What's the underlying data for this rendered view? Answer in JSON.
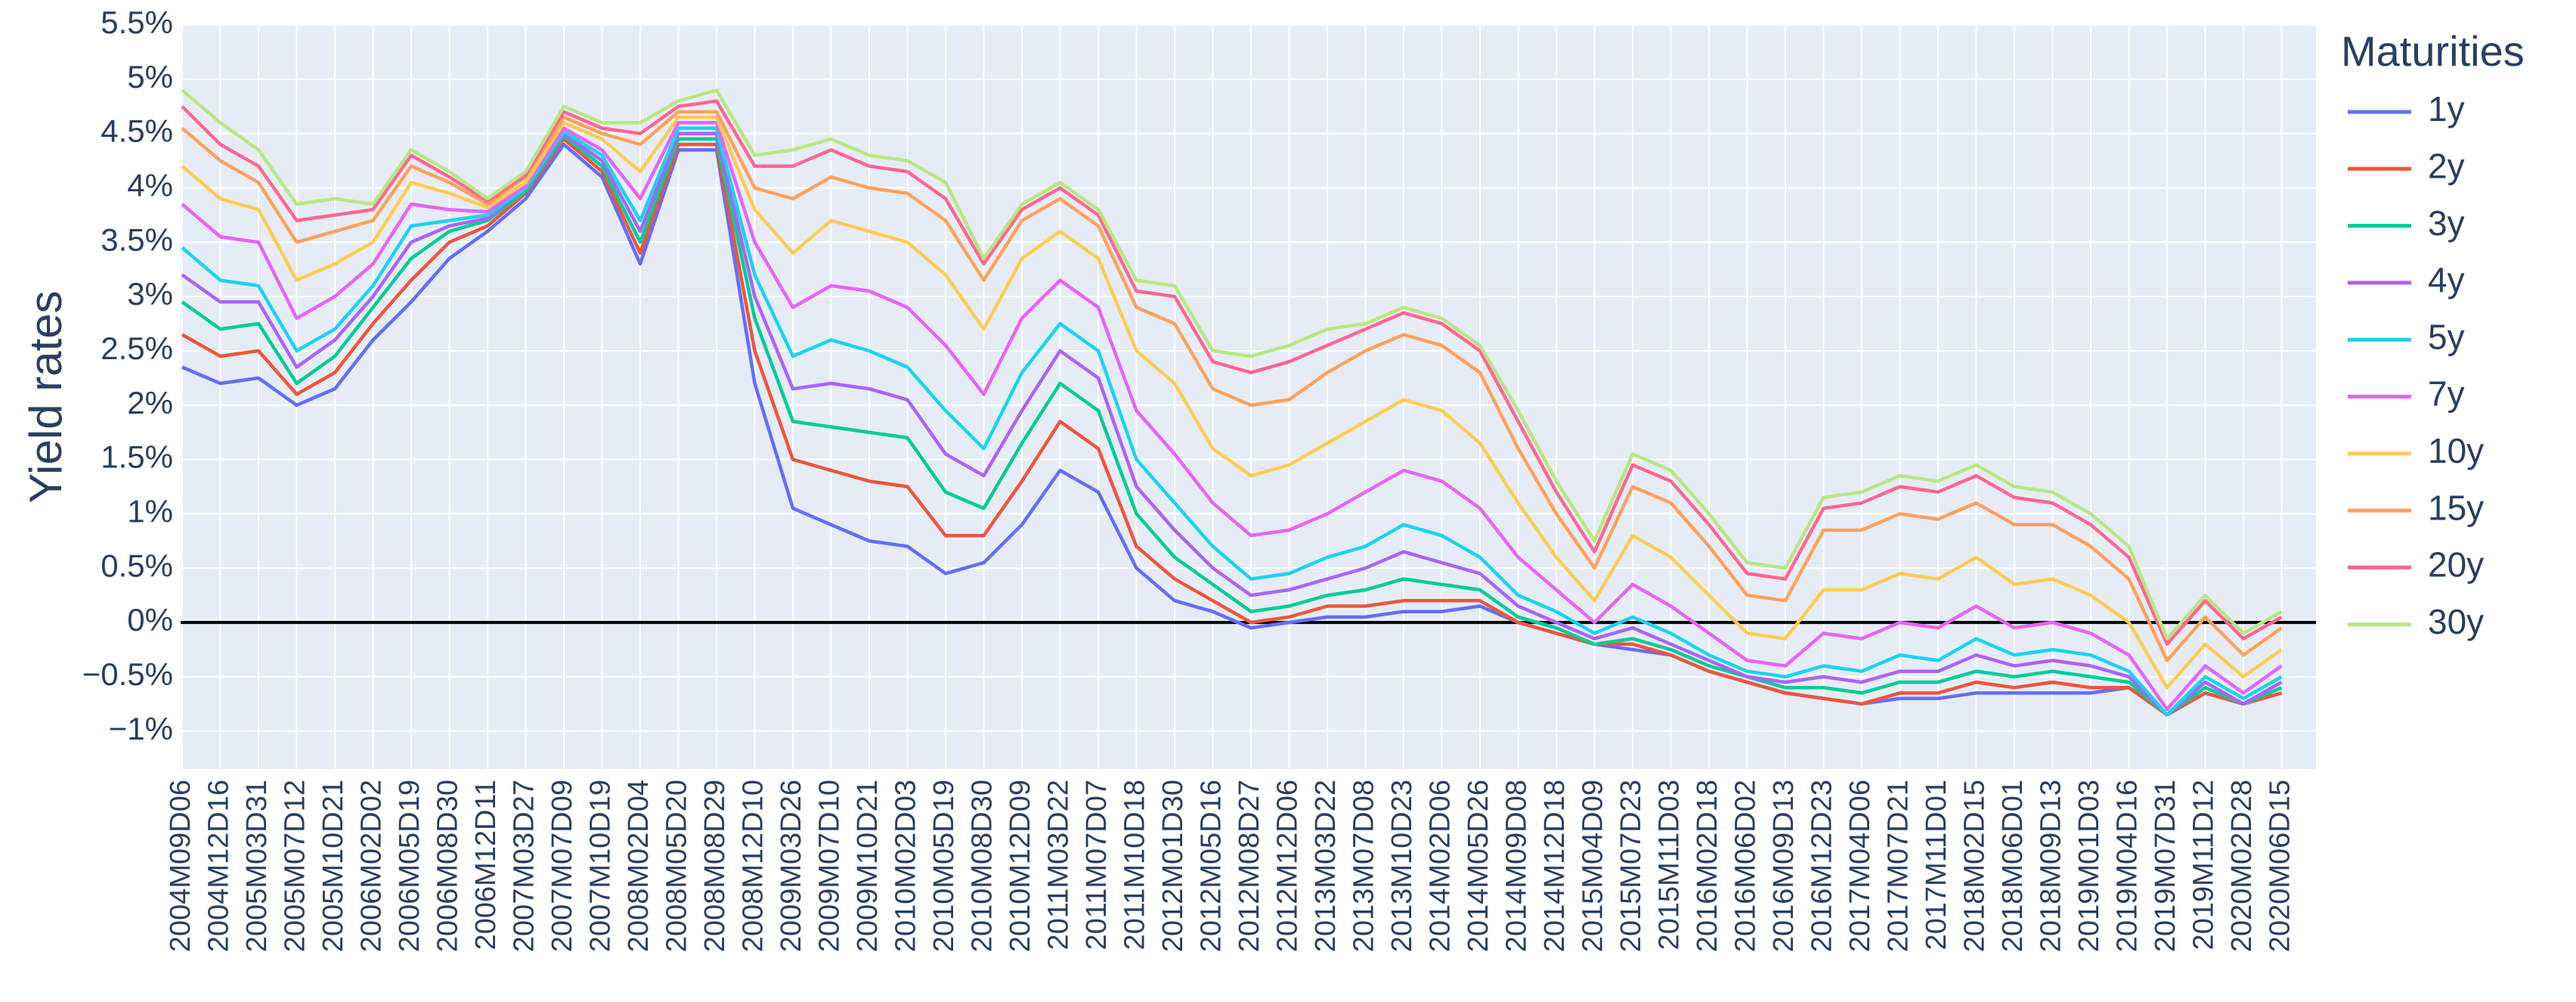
{
  "chart_data": {
    "type": "line",
    "y_label": "Yield rates",
    "legend_title": "Maturities",
    "grid": true,
    "zeroline": true,
    "ylim": [
      -1.35,
      5.5
    ],
    "yticks": [
      {
        "value": -1,
        "label": "−1%"
      },
      {
        "value": -0.5,
        "label": "−0.5%"
      },
      {
        "value": 0,
        "label": "0%"
      },
      {
        "value": 0.5,
        "label": "0.5%"
      },
      {
        "value": 1,
        "label": "1%"
      },
      {
        "value": 1.5,
        "label": "1.5%"
      },
      {
        "value": 2,
        "label": "2%"
      },
      {
        "value": 2.5,
        "label": "2.5%"
      },
      {
        "value": 3,
        "label": "3%"
      },
      {
        "value": 3.5,
        "label": "3.5%"
      },
      {
        "value": 4,
        "label": "4%"
      },
      {
        "value": 4.5,
        "label": "4.5%"
      },
      {
        "value": 5,
        "label": "5%"
      },
      {
        "value": 5.5,
        "label": "5.5%"
      }
    ],
    "categories": [
      "2004M09D06",
      "2004M12D16",
      "2005M03D31",
      "2005M07D12",
      "2005M10D21",
      "2006M02D02",
      "2006M05D19",
      "2006M08D30",
      "2006M12D11",
      "2007M03D27",
      "2007M07D09",
      "2007M10D19",
      "2008M02D04",
      "2008M05D20",
      "2008M08D29",
      "2008M12D10",
      "2009M03D26",
      "2009M07D10",
      "2009M10D21",
      "2010M02D03",
      "2010M05D19",
      "2010M08D30",
      "2010M12D09",
      "2011M03D22",
      "2011M07D07",
      "2011M10D18",
      "2012M01D30",
      "2012M05D16",
      "2012M08D27",
      "2012M12D06",
      "2013M03D22",
      "2013M07D08",
      "2013M10D23",
      "2014M02D06",
      "2014M05D26",
      "2014M09D08",
      "2014M12D18",
      "2015M04D09",
      "2015M07D23",
      "2015M11D03",
      "2016M02D18",
      "2016M06D02",
      "2016M09D13",
      "2016M12D23",
      "2017M04D06",
      "2017M07D21",
      "2017M11D01",
      "2018M02D15",
      "2018M06D01",
      "2018M09D13",
      "2019M01D03",
      "2019M04D16",
      "2019M07D31",
      "2019M11D12",
      "2020M02D28",
      "2020M06D15"
    ],
    "series": [
      {
        "name": "1y",
        "color": "#636efa",
        "values": [
          2.35,
          2.2,
          2.25,
          2.0,
          2.15,
          2.6,
          2.95,
          3.35,
          3.6,
          3.9,
          4.4,
          4.1,
          3.3,
          4.35,
          4.35,
          2.2,
          1.05,
          0.9,
          0.75,
          0.7,
          0.45,
          0.55,
          0.9,
          1.4,
          1.2,
          0.5,
          0.2,
          0.1,
          -0.05,
          0.0,
          0.05,
          0.05,
          0.1,
          0.1,
          0.15,
          0.0,
          -0.1,
          -0.2,
          -0.25,
          -0.3,
          -0.45,
          -0.55,
          -0.65,
          -0.7,
          -0.75,
          -0.7,
          -0.7,
          -0.65,
          -0.65,
          -0.65,
          -0.65,
          -0.6,
          -0.85,
          -0.65,
          -0.75,
          -0.65
        ]
      },
      {
        "name": "2y",
        "color": "#ef553b",
        "values": [
          2.65,
          2.45,
          2.5,
          2.1,
          2.3,
          2.75,
          3.15,
          3.5,
          3.65,
          3.95,
          4.45,
          4.15,
          3.4,
          4.4,
          4.4,
          2.5,
          1.5,
          1.4,
          1.3,
          1.25,
          0.8,
          0.8,
          1.3,
          1.85,
          1.6,
          0.7,
          0.4,
          0.2,
          0.0,
          0.05,
          0.15,
          0.15,
          0.2,
          0.2,
          0.2,
          0.0,
          -0.1,
          -0.2,
          -0.2,
          -0.3,
          -0.45,
          -0.55,
          -0.65,
          -0.7,
          -0.75,
          -0.65,
          -0.65,
          -0.55,
          -0.6,
          -0.55,
          -0.6,
          -0.6,
          -0.85,
          -0.65,
          -0.75,
          -0.65
        ]
      },
      {
        "name": "3y",
        "color": "#00cc96",
        "values": [
          2.95,
          2.7,
          2.75,
          2.2,
          2.45,
          2.9,
          3.35,
          3.6,
          3.7,
          3.97,
          4.48,
          4.2,
          3.5,
          4.45,
          4.45,
          2.8,
          1.85,
          1.8,
          1.75,
          1.7,
          1.2,
          1.05,
          1.65,
          2.2,
          1.95,
          1.0,
          0.6,
          0.35,
          0.1,
          0.15,
          0.25,
          0.3,
          0.4,
          0.35,
          0.3,
          0.05,
          -0.05,
          -0.2,
          -0.15,
          -0.25,
          -0.4,
          -0.5,
          -0.6,
          -0.6,
          -0.65,
          -0.55,
          -0.55,
          -0.45,
          -0.5,
          -0.45,
          -0.5,
          -0.55,
          -0.85,
          -0.6,
          -0.75,
          -0.6
        ]
      },
      {
        "name": "4y",
        "color": "#ab63fa",
        "values": [
          3.2,
          2.95,
          2.95,
          2.35,
          2.6,
          3.0,
          3.5,
          3.65,
          3.72,
          4.0,
          4.5,
          4.25,
          3.6,
          4.5,
          4.5,
          3.0,
          2.15,
          2.2,
          2.15,
          2.05,
          1.55,
          1.35,
          1.95,
          2.5,
          2.25,
          1.25,
          0.85,
          0.5,
          0.25,
          0.3,
          0.4,
          0.5,
          0.65,
          0.55,
          0.45,
          0.15,
          0.0,
          -0.15,
          -0.05,
          -0.2,
          -0.35,
          -0.5,
          -0.55,
          -0.5,
          -0.55,
          -0.45,
          -0.45,
          -0.3,
          -0.4,
          -0.35,
          -0.4,
          -0.5,
          -0.85,
          -0.55,
          -0.75,
          -0.55
        ]
      },
      {
        "name": "5y",
        "color": "#19d3f3",
        "values": [
          3.45,
          3.15,
          3.1,
          2.5,
          2.7,
          3.1,
          3.65,
          3.7,
          3.75,
          4.0,
          4.52,
          4.3,
          3.7,
          4.55,
          4.55,
          3.2,
          2.45,
          2.6,
          2.5,
          2.35,
          1.95,
          1.6,
          2.3,
          2.75,
          2.5,
          1.5,
          1.1,
          0.7,
          0.4,
          0.45,
          0.6,
          0.7,
          0.9,
          0.8,
          0.6,
          0.25,
          0.1,
          -0.1,
          0.05,
          -0.1,
          -0.3,
          -0.45,
          -0.5,
          -0.4,
          -0.45,
          -0.3,
          -0.35,
          -0.15,
          -0.3,
          -0.25,
          -0.3,
          -0.45,
          -0.85,
          -0.5,
          -0.7,
          -0.5
        ]
      },
      {
        "name": "7y",
        "color": "#e763fa",
        "values": [
          3.85,
          3.55,
          3.5,
          2.8,
          3.0,
          3.3,
          3.85,
          3.8,
          3.78,
          4.02,
          4.55,
          4.35,
          3.9,
          4.6,
          4.6,
          3.5,
          2.9,
          3.1,
          3.05,
          2.9,
          2.55,
          2.1,
          2.8,
          3.15,
          2.9,
          1.95,
          1.55,
          1.1,
          0.8,
          0.85,
          1.0,
          1.2,
          1.4,
          1.3,
          1.05,
          0.6,
          0.3,
          0.0,
          0.35,
          0.15,
          -0.1,
          -0.35,
          -0.4,
          -0.1,
          -0.15,
          0.0,
          -0.05,
          0.15,
          -0.05,
          0.0,
          -0.1,
          -0.3,
          -0.8,
          -0.4,
          -0.65,
          -0.4
        ]
      },
      {
        "name": "10y",
        "color": "#fecb52",
        "values": [
          4.2,
          3.9,
          3.8,
          3.15,
          3.3,
          3.5,
          4.05,
          3.95,
          3.82,
          4.05,
          4.6,
          4.45,
          4.15,
          4.65,
          4.65,
          3.8,
          3.4,
          3.7,
          3.6,
          3.5,
          3.2,
          2.7,
          3.35,
          3.6,
          3.35,
          2.5,
          2.2,
          1.6,
          1.35,
          1.45,
          1.65,
          1.85,
          2.05,
          1.95,
          1.65,
          1.1,
          0.6,
          0.2,
          0.8,
          0.6,
          0.25,
          -0.1,
          -0.15,
          0.3,
          0.3,
          0.45,
          0.4,
          0.6,
          0.35,
          0.4,
          0.25,
          0.0,
          -0.6,
          -0.2,
          -0.5,
          -0.25
        ]
      },
      {
        "name": "15y",
        "color": "#ffa15a",
        "values": [
          4.55,
          4.25,
          4.05,
          3.5,
          3.6,
          3.7,
          4.2,
          4.05,
          3.85,
          4.1,
          4.65,
          4.5,
          4.4,
          4.7,
          4.7,
          4.0,
          3.9,
          4.1,
          4.0,
          3.95,
          3.7,
          3.15,
          3.7,
          3.9,
          3.65,
          2.9,
          2.75,
          2.15,
          2.0,
          2.05,
          2.3,
          2.5,
          2.65,
          2.55,
          2.3,
          1.6,
          1.0,
          0.5,
          1.25,
          1.1,
          0.7,
          0.25,
          0.2,
          0.85,
          0.85,
          1.0,
          0.95,
          1.1,
          0.9,
          0.9,
          0.7,
          0.4,
          -0.35,
          0.05,
          -0.3,
          -0.05
        ]
      },
      {
        "name": "20y",
        "color": "#ff6692",
        "values": [
          4.75,
          4.4,
          4.2,
          3.7,
          3.75,
          3.8,
          4.3,
          4.1,
          3.88,
          4.12,
          4.7,
          4.55,
          4.5,
          4.75,
          4.8,
          4.2,
          4.2,
          4.35,
          4.2,
          4.15,
          3.9,
          3.3,
          3.8,
          4.0,
          3.75,
          3.05,
          3.0,
          2.4,
          2.3,
          2.4,
          2.55,
          2.7,
          2.85,
          2.75,
          2.5,
          1.85,
          1.2,
          0.65,
          1.45,
          1.3,
          0.9,
          0.45,
          0.4,
          1.05,
          1.1,
          1.25,
          1.2,
          1.35,
          1.15,
          1.1,
          0.9,
          0.6,
          -0.2,
          0.2,
          -0.15,
          0.05
        ]
      },
      {
        "name": "30y",
        "color": "#b6e880",
        "values": [
          4.9,
          4.6,
          4.35,
          3.85,
          3.9,
          3.85,
          4.35,
          4.15,
          3.9,
          4.15,
          4.75,
          4.6,
          4.6,
          4.8,
          4.9,
          4.3,
          4.35,
          4.45,
          4.3,
          4.25,
          4.05,
          3.35,
          3.85,
          4.05,
          3.8,
          3.15,
          3.1,
          2.5,
          2.45,
          2.55,
          2.7,
          2.75,
          2.9,
          2.8,
          2.55,
          1.95,
          1.3,
          0.75,
          1.55,
          1.4,
          1.0,
          0.55,
          0.5,
          1.15,
          1.2,
          1.35,
          1.3,
          1.45,
          1.25,
          1.2,
          1.0,
          0.7,
          -0.15,
          0.25,
          -0.1,
          0.1
        ]
      }
    ]
  }
}
